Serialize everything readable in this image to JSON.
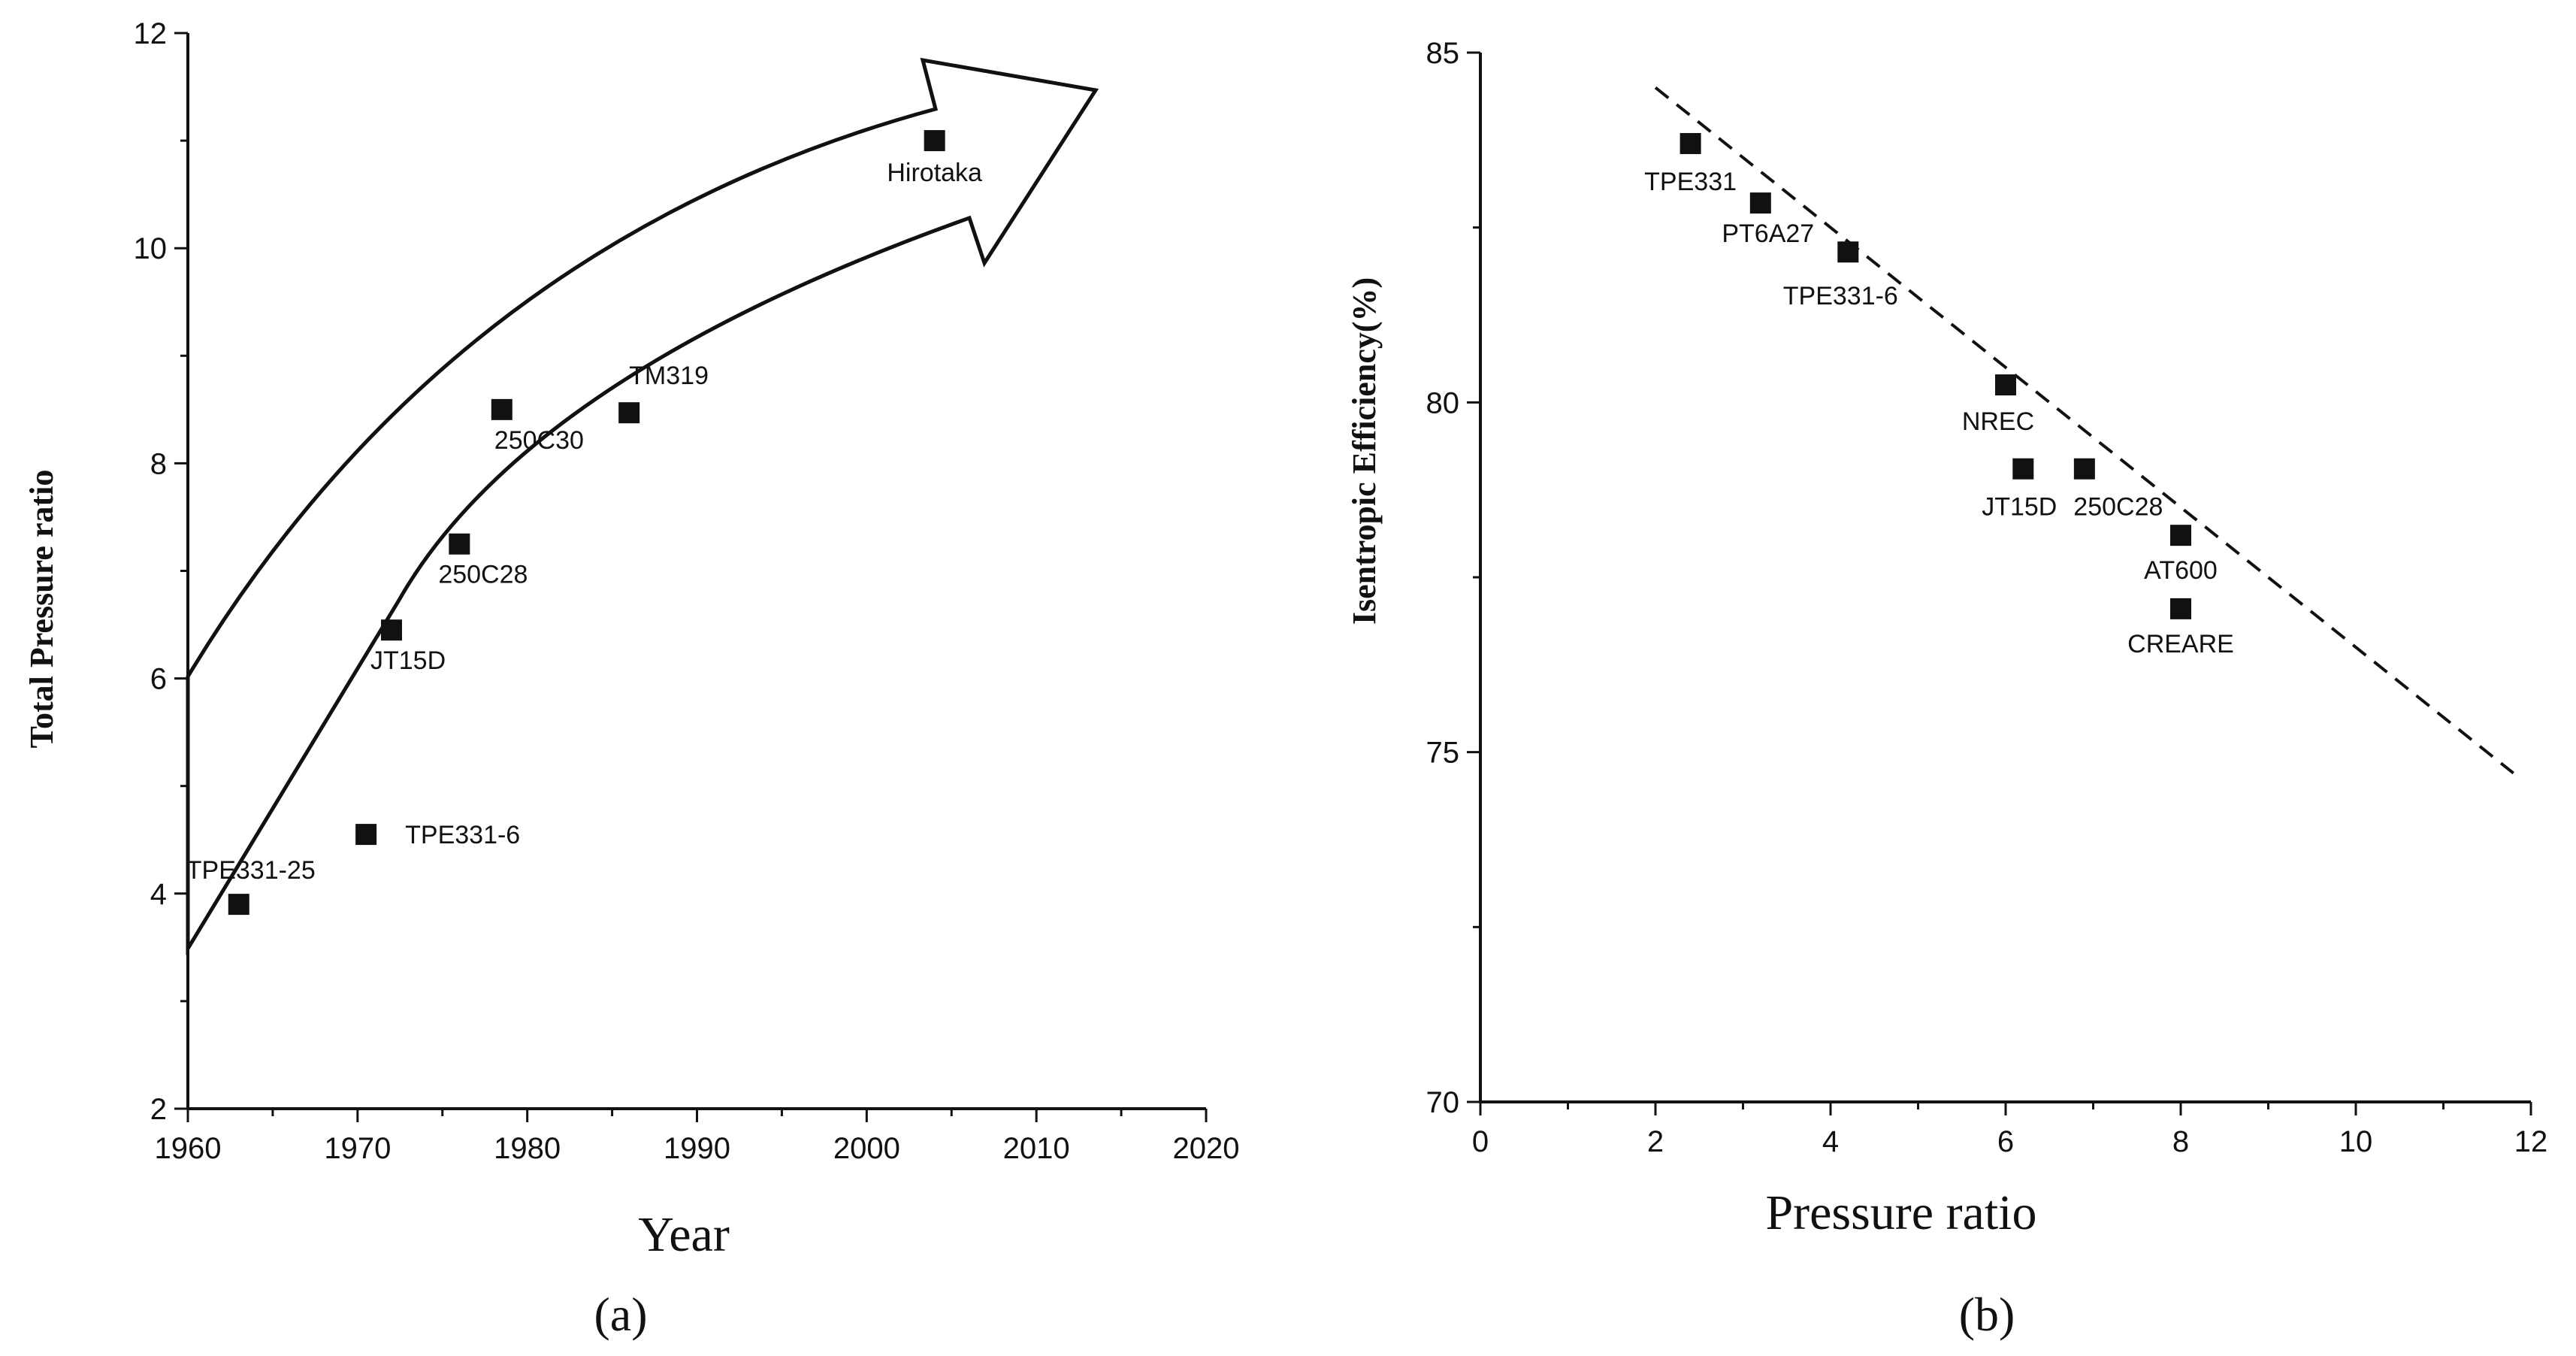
{
  "chart_data": [
    {
      "type": "scatter",
      "panel": "(a)",
      "xlabel": "Year",
      "ylabel": "Total Pressure ratio",
      "xlim": [
        1960,
        2020
      ],
      "ylim": [
        2,
        12
      ],
      "xticks": [
        "1960",
        "1970",
        "1980",
        "1990",
        "2000",
        "2010",
        "2020"
      ],
      "yticks": [
        "2",
        "4",
        "6",
        "8",
        "10",
        "12"
      ],
      "points": [
        {
          "x": 1963,
          "y": 3.9,
          "label": "TPE331-25"
        },
        {
          "x": 1970.5,
          "y": 4.55,
          "label": "TPE331-6"
        },
        {
          "x": 1972,
          "y": 6.45,
          "label": "JT15D"
        },
        {
          "x": 1976,
          "y": 7.25,
          "label": "250C28"
        },
        {
          "x": 1978.5,
          "y": 8.5,
          "label": "250C30"
        },
        {
          "x": 1986,
          "y": 8.47,
          "label": "TM319"
        },
        {
          "x": 2004,
          "y": 11.0,
          "label": "Hirotaka"
        }
      ],
      "annotation": "upward trend arrow"
    },
    {
      "type": "scatter",
      "panel": "(b)",
      "xlabel": "Pressure ratio",
      "ylabel": "Isentropic Efficiency(%)",
      "xlim": [
        0,
        12
      ],
      "ylim": [
        70,
        85
      ],
      "xticks": [
        "0",
        "2",
        "4",
        "6",
        "8",
        "10",
        "12"
      ],
      "yticks": [
        "70",
        "75",
        "80",
        "85"
      ],
      "points": [
        {
          "x": 2.4,
          "y": 83.7,
          "label": "TPE331"
        },
        {
          "x": 3.2,
          "y": 82.85,
          "label": "PT6A27"
        },
        {
          "x": 4.2,
          "y": 82.15,
          "label": "TPE331-6"
        },
        {
          "x": 6.0,
          "y": 80.25,
          "label": "NREC"
        },
        {
          "x": 6.2,
          "y": 79.05,
          "label": "JT15D"
        },
        {
          "x": 6.9,
          "y": 79.05,
          "label": "250C28"
        },
        {
          "x": 8.0,
          "y": 78.1,
          "label": "AT600"
        },
        {
          "x": 8.0,
          "y": 77.05,
          "label": "CREARE"
        }
      ],
      "trendline": {
        "style": "dashed",
        "from": [
          2.0,
          84.5
        ],
        "to": [
          11.8,
          74.7
        ]
      }
    }
  ],
  "captions": {
    "a": "(a)",
    "b": "(b)"
  }
}
